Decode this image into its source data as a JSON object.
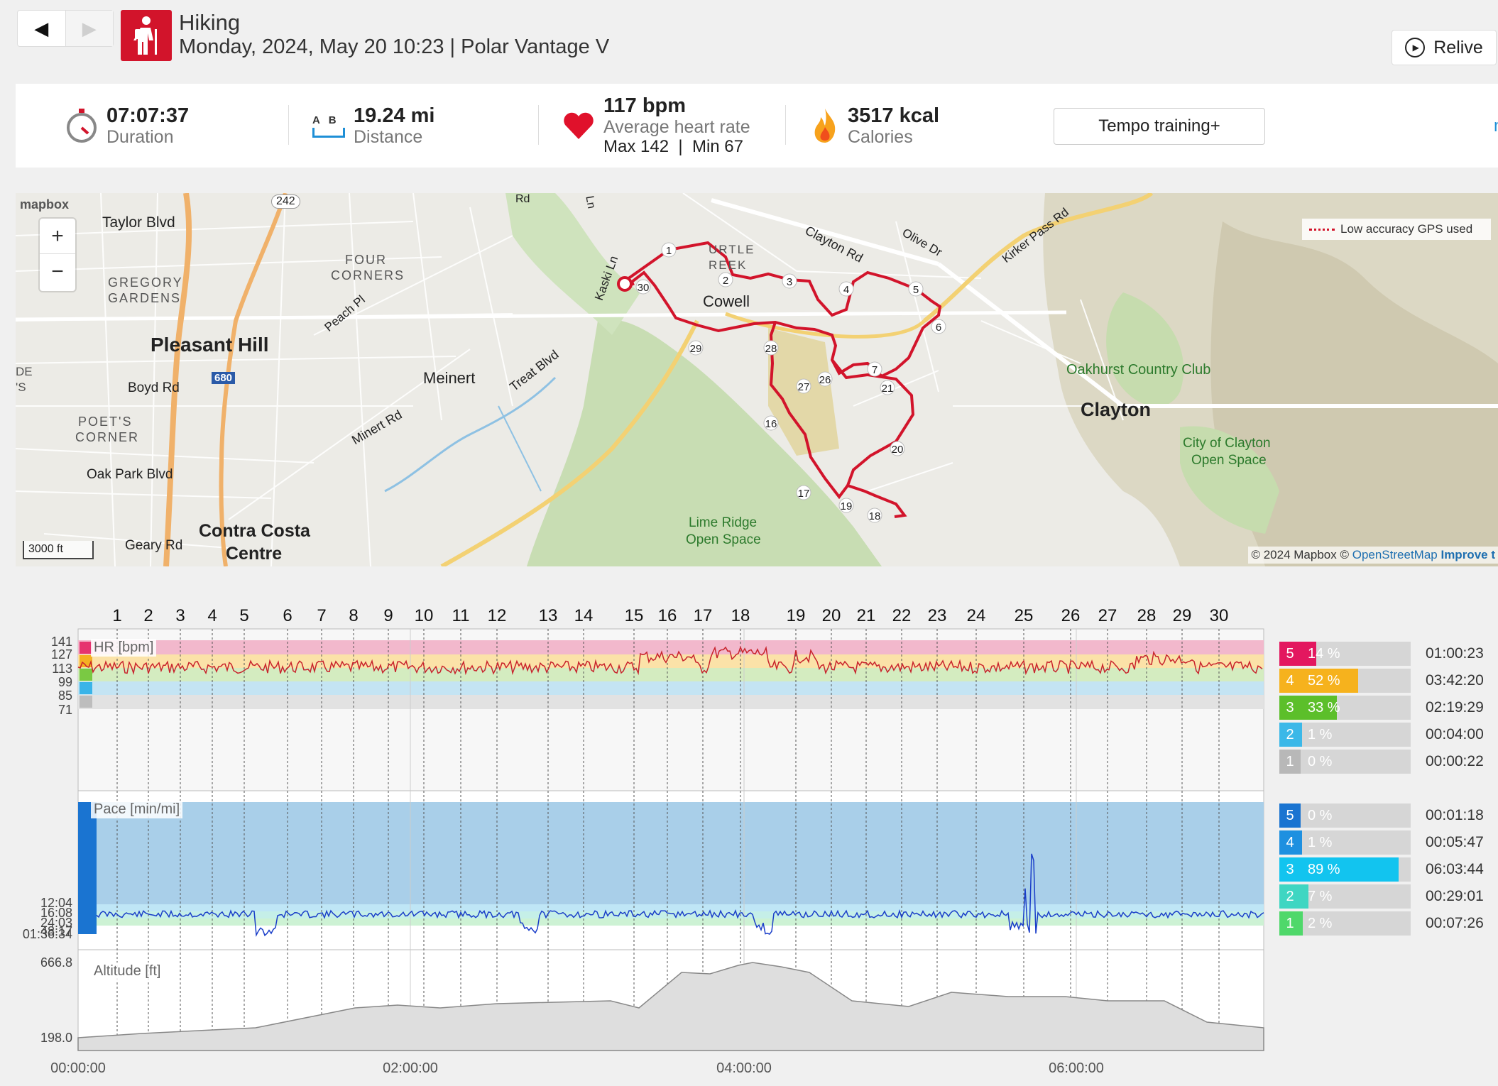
{
  "header": {
    "prev_icon": "◀",
    "next_icon": "▶",
    "sport": "Hiking",
    "subtitle": "Monday, 2024, May 20 10:23 | Polar Vantage V",
    "relive_label": "Relive"
  },
  "summary": {
    "duration_value": "07:07:37",
    "duration_label": "Duration",
    "distance_ab": "A   B",
    "distance_value": "19.24 mi",
    "distance_label": "Distance",
    "hr_value": "117 bpm",
    "hr_label": "Average heart rate",
    "hr_maxmin": "Max 142  |  Min 67",
    "cal_value": "3517 kcal",
    "cal_label": "Calories",
    "tempo_label": "Tempo training+",
    "more_label": "mo"
  },
  "map": {
    "logo": "mapbox",
    "gps_legend": "Low accuracy GPS used",
    "scale": "3000 ft",
    "attribution_copy": "© 2024 Mapbox © ",
    "attribution_osm": "OpenStreetMap",
    "attribution_improve": "Improve t",
    "labels": {
      "taylor": "Taylor Blvd",
      "hwy": "242",
      "gregory1": "GREGORY",
      "gregory2": "GARDENS",
      "four1": "FOUR",
      "four2": "CORNERS",
      "peach": "Peach Pl",
      "pleasant": "Pleasant Hill",
      "boyd": "Boyd Rd",
      "i680": "680",
      "meinert": "Meinert",
      "treat": "Treat Blvd",
      "poets1": "POET'S",
      "poets2": "CORNER",
      "minert": "Minert Rd",
      "oakpark": "Oak Park Blvd",
      "geary": "Geary Rd",
      "contra1": "Contra Costa",
      "contra2": "Centre",
      "kaski": "Kaski Ln",
      "turtle1": "URTLE",
      "turtle2": "REEK",
      "cowell": "Cowell",
      "claytonrd": "Clayton Rd",
      "olive": "Olive Dr",
      "kirker": "Kirker Pass Rd",
      "oakhurst": "Oakhurst Country Club",
      "clayton": "Clayton",
      "cityclayton1": "City of Clayton",
      "cityclayton2": "Open Space",
      "lime1": "Lime Ridge",
      "lime2": "Open Space",
      "rd_top": "Rd",
      "ln_top": "Ln",
      "left1": "DE",
      "left2": "'S"
    },
    "markers": [
      "1",
      "2",
      "3",
      "4",
      "5",
      "6",
      "7",
      "16",
      "17",
      "18",
      "19",
      "20",
      "21",
      "26",
      "27",
      "28",
      "29",
      "30"
    ]
  },
  "laps": [
    "1",
    "2",
    "3",
    "4",
    "5",
    "6",
    "7",
    "8",
    "9",
    "10",
    "11",
    "12",
    "13",
    "14",
    "15",
    "16",
    "17",
    "18",
    "19",
    "20",
    "21",
    "22",
    "23",
    "24",
    "25",
    "26",
    "27",
    "28",
    "29",
    "30"
  ],
  "hr_chart": {
    "label": "HR [bpm]",
    "ticks": [
      "141",
      "127",
      "113",
      "99",
      "85",
      "71"
    ],
    "zone_colors": [
      "#e6336f",
      "#f5b022",
      "#7ac943",
      "#3ab4e8",
      "#bdbdbd"
    ]
  },
  "pace_chart": {
    "label": "Pace [min/mi]",
    "ticks": [
      "12:04",
      "16:08",
      "24:03",
      "48:17",
      "01:36:34"
    ]
  },
  "alt_chart": {
    "label": "Altitude [ft]",
    "max": "666.8",
    "min": "198.0"
  },
  "time_axis": [
    "00:00:00",
    "02:00:00",
    "04:00:00",
    "06:00:00"
  ],
  "hr_zones": [
    {
      "num": "5",
      "pct": "14 %",
      "fraction": 0.14,
      "time": "01:00:23",
      "color": "#e3175f"
    },
    {
      "num": "4",
      "pct": "52 %",
      "fraction": 0.52,
      "time": "03:42:20",
      "color": "#f6b21d"
    },
    {
      "num": "3",
      "pct": "33 %",
      "fraction": 0.33,
      "time": "02:19:29",
      "color": "#5cbf2a"
    },
    {
      "num": "2",
      "pct": "1 %",
      "fraction": 0.01,
      "time": "00:04:00",
      "color": "#3bb8e8"
    },
    {
      "num": "1",
      "pct": "0 %",
      "fraction": 0.0,
      "time": "00:00:22",
      "color": "#b8b8b8"
    }
  ],
  "pace_zones": [
    {
      "num": "5",
      "pct": "0 %",
      "fraction": 0.0,
      "time": "00:01:18",
      "color": "#1a74d1"
    },
    {
      "num": "4",
      "pct": "1 %",
      "fraction": 0.01,
      "time": "00:05:47",
      "color": "#1e90e0"
    },
    {
      "num": "3",
      "pct": "89 %",
      "fraction": 0.89,
      "time": "06:03:44",
      "color": "#12c4ef"
    },
    {
      "num": "2",
      "pct": "7 %",
      "fraction": 0.07,
      "time": "00:29:01",
      "color": "#3fd6c2"
    },
    {
      "num": "1",
      "pct": "2 %",
      "fraction": 0.02,
      "time": "00:07:26",
      "color": "#4fd86a"
    }
  ],
  "colors": {
    "brand": "#d2142b",
    "route": "#d2142b",
    "link": "#1e8fd6"
  }
}
